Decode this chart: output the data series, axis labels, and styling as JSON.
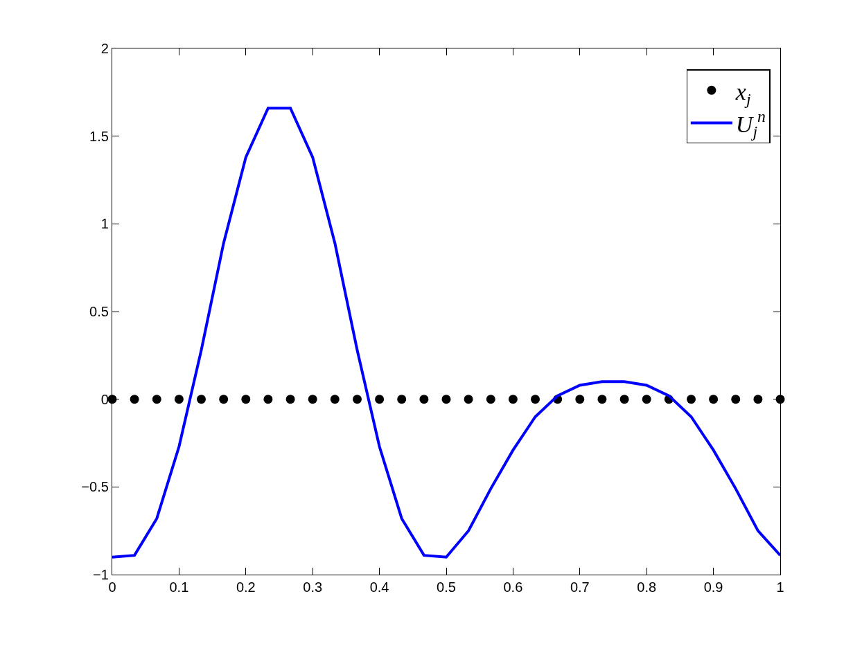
{
  "chart_data": {
    "type": "line",
    "x": [
      0,
      0.0333,
      0.0667,
      0.1,
      0.1333,
      0.1667,
      0.2,
      0.2333,
      0.2667,
      0.3,
      0.3333,
      0.3667,
      0.4,
      0.4333,
      0.4667,
      0.5,
      0.5333,
      0.5667,
      0.6,
      0.6333,
      0.6667,
      0.7,
      0.7333,
      0.7667,
      0.8,
      0.8333,
      0.8667,
      0.9,
      0.9333,
      0.9667,
      1
    ],
    "xlim": [
      0,
      1
    ],
    "ylim": [
      -1,
      2
    ],
    "xticks": [
      0,
      0.1,
      0.2,
      0.3,
      0.4,
      0.5,
      0.6,
      0.7,
      0.8,
      0.9,
      1
    ],
    "yticks": [
      {
        "value": -1,
        "label": "−1"
      },
      {
        "value": -0.5,
        "label": "−0.5"
      },
      0,
      0.5,
      1,
      1.5,
      2
    ],
    "grid": false,
    "legend": "top right",
    "series": [
      {
        "name": "x$_{j}$",
        "type": "scatter",
        "marker": "circle",
        "color": "#000000",
        "values": [
          0,
          0,
          0,
          0,
          0,
          0,
          0,
          0,
          0,
          0,
          0,
          0,
          0,
          0,
          0,
          0,
          0,
          0,
          0,
          0,
          0,
          0,
          0,
          0,
          0,
          0,
          0,
          0,
          0,
          0,
          0
        ]
      },
      {
        "name": "U$_{j}$$^{n}$",
        "line_style": "solid",
        "color": "#0000ff",
        "values": [
          -0.9,
          -0.89,
          -0.68,
          -0.27,
          0.28,
          0.89,
          1.38,
          1.66,
          1.66,
          1.38,
          0.89,
          0.28,
          -0.27,
          -0.68,
          -0.89,
          -0.9,
          -0.75,
          -0.51,
          -0.29,
          -0.1,
          0.02,
          0.08,
          0.1,
          0.1,
          0.08,
          0.02,
          -0.1,
          -0.29,
          -0.51,
          -0.75,
          -0.89
        ]
      }
    ]
  }
}
